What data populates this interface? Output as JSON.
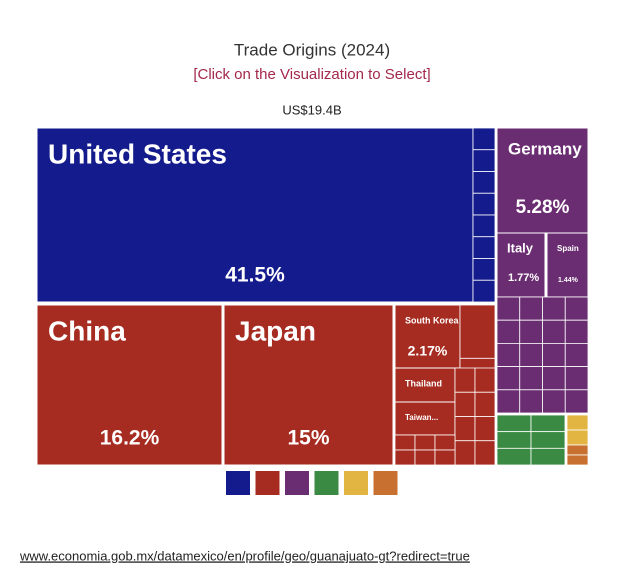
{
  "chart_data": {
    "type": "treemap",
    "title": "Trade Origins (2024)",
    "subtitle": "[Click on the Visualization to Select]",
    "total_label": "US$19.4B",
    "items": [
      {
        "name": "United States",
        "value": 41.5,
        "value_label": "41.5%",
        "color": "#141b8c"
      },
      {
        "name": "China",
        "value": 16.2,
        "value_label": "16.2%",
        "color": "#a62b20"
      },
      {
        "name": "Japan",
        "value": 15,
        "value_label": "15%",
        "color": "#a62b20"
      },
      {
        "name": "South Korea",
        "value": 2.17,
        "value_label": "2.17%",
        "color": "#a62b20"
      },
      {
        "name": "Thailand",
        "value": 1.15,
        "color": "#a62b20"
      },
      {
        "name": "Taiwan...",
        "value": 0.93,
        "color": "#a62b20"
      },
      {
        "name": "Germany",
        "value": 5.28,
        "value_label": "5.28%",
        "color": "#6b2d72"
      },
      {
        "name": "Italy",
        "value": 1.77,
        "value_label": "1.77%",
        "color": "#6b2d72"
      },
      {
        "name": "Spain",
        "value": 1.44,
        "value_label": "1.44%",
        "color": "#6b2d72"
      }
    ],
    "legend_colors": [
      "#141b8c",
      "#a62b20",
      "#6b2d72",
      "#3b8a44",
      "#e2b441",
      "#c8702f"
    ]
  },
  "footer": {
    "url": "www.economia.gob.mx/datamexico/en/profile/geo/guanajuato-gt?redirect=true"
  }
}
